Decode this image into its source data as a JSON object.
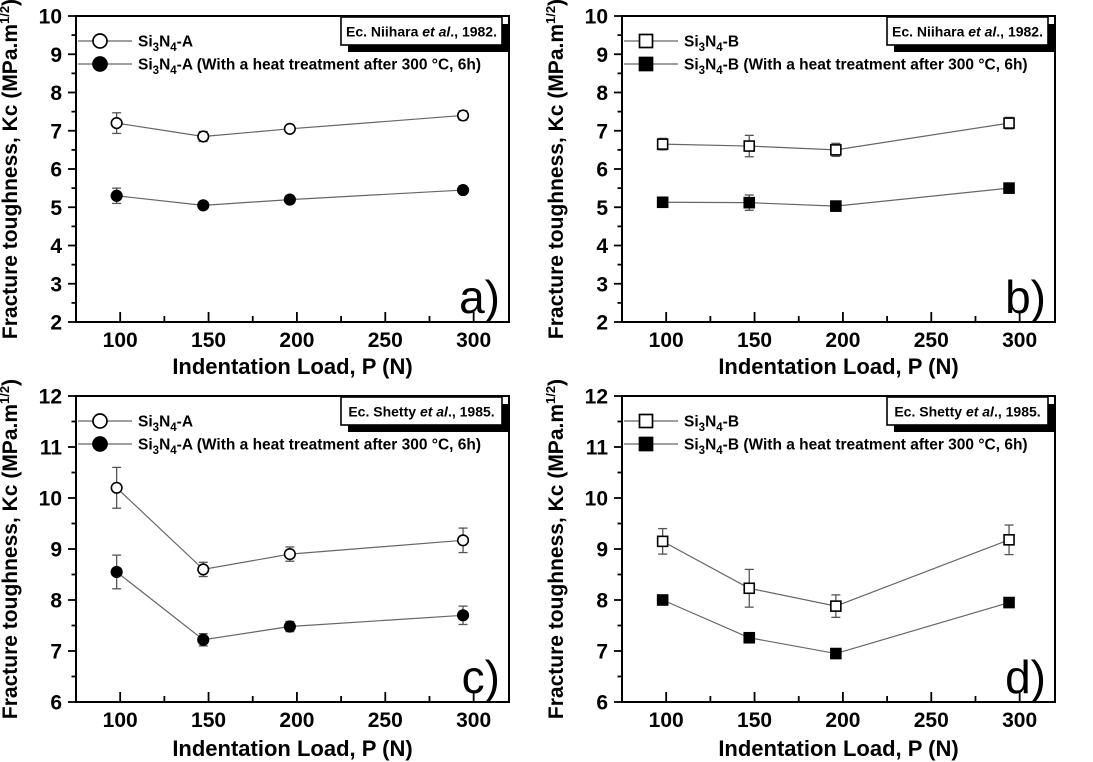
{
  "style": {
    "background": "#ffffff",
    "frame_color": "#000000",
    "line_color": "#666666",
    "error_bar_color": "#555555",
    "marker_color": "#000000",
    "open_marker_fill": "#ffffff",
    "reference_box_fill": "#ffffff",
    "reference_box_shadow": "#000000"
  },
  "chart_data": [
    {
      "id": "a",
      "panel_label": "a)",
      "type": "line",
      "reference": {
        "pre": "Ec. Niihara ",
        "italic": "et al",
        "post": "., 1982."
      },
      "xlabel": "Indentation Load, P (N)",
      "ylabel": {
        "pre": "Fracture toughness, Kc (MPa.m",
        "sup": "1/2",
        "post": ")"
      },
      "xlim": [
        75,
        320
      ],
      "ylim": [
        2,
        10
      ],
      "xticks": [
        100,
        150,
        200,
        250,
        300
      ],
      "xminorticks": [
        125,
        175,
        225,
        275
      ],
      "yticks": [
        2,
        3,
        4,
        5,
        6,
        7,
        8,
        9,
        10
      ],
      "legend_position": "top-left",
      "x": [
        98,
        147,
        196,
        294
      ],
      "series": [
        {
          "name": "Si3N4-A",
          "formula": "Si3N4",
          "suffix": "-A",
          "marker": "circle",
          "fill": "open",
          "values": [
            7.2,
            6.85,
            7.05,
            7.4
          ],
          "errors": [
            0.27,
            0.13,
            0,
            0.12
          ]
        },
        {
          "name": "Si3N4-A (With a heat treatment after 300 °C, 6h)",
          "formula": "Si3N4",
          "suffix": "-A (With a heat treatment after 300 °C, 6h)",
          "marker": "circle",
          "fill": "solid",
          "values": [
            5.3,
            5.05,
            5.2,
            5.45
          ],
          "errors": [
            0.2,
            0,
            0,
            0.07
          ]
        }
      ]
    },
    {
      "id": "b",
      "panel_label": "b)",
      "type": "line",
      "reference": {
        "pre": "Ec. Niihara ",
        "italic": "et al",
        "post": "., 1982."
      },
      "xlabel": "Indentation Load, P (N)",
      "ylabel": {
        "pre": "Fracture toughness, Kc (MPa.m",
        "sup": "1/2",
        "post": ")"
      },
      "xlim": [
        75,
        320
      ],
      "ylim": [
        2,
        10
      ],
      "xticks": [
        100,
        150,
        200,
        250,
        300
      ],
      "xminorticks": [
        125,
        175,
        225,
        275
      ],
      "yticks": [
        2,
        3,
        4,
        5,
        6,
        7,
        8,
        9,
        10
      ],
      "legend_position": "top-left",
      "x": [
        98,
        147,
        196,
        294
      ],
      "series": [
        {
          "name": "Si3N4-B",
          "formula": "Si3N4",
          "suffix": "-B",
          "marker": "square",
          "fill": "open",
          "values": [
            6.65,
            6.6,
            6.5,
            7.2
          ],
          "errors": [
            0.15,
            0.28,
            0.17,
            0.15
          ]
        },
        {
          "name": "Si3N4-B (With a heat treatment after 300 °C, 6h)",
          "formula": "Si3N4",
          "suffix": "-B (With a heat treatment after 300 °C, 6h)",
          "marker": "square",
          "fill": "solid",
          "values": [
            5.13,
            5.12,
            5.03,
            5.5
          ],
          "errors": [
            0.12,
            0.2,
            0.13,
            0.12
          ]
        }
      ]
    },
    {
      "id": "c",
      "panel_label": "c)",
      "type": "line",
      "reference": {
        "pre": "Ec. Shetty ",
        "italic": "et al",
        "post": "., 1985."
      },
      "xlabel": "Indentation Load, P (N)",
      "ylabel": {
        "pre": "Fracture toughness, Kc (MPa.m",
        "sup": "1/2",
        "post": ")"
      },
      "xlim": [
        75,
        320
      ],
      "ylim": [
        6,
        12
      ],
      "xticks": [
        100,
        150,
        200,
        250,
        300
      ],
      "xminorticks": [
        125,
        175,
        225,
        275
      ],
      "yticks": [
        6,
        7,
        8,
        9,
        10,
        11,
        12
      ],
      "legend_position": "top-left",
      "x": [
        98,
        147,
        196,
        294
      ],
      "series": [
        {
          "name": "Si3N4-A",
          "formula": "Si3N4",
          "suffix": "-A",
          "marker": "circle",
          "fill": "open",
          "values": [
            10.2,
            8.6,
            8.9,
            9.17
          ],
          "errors": [
            0.4,
            0.14,
            0.14,
            0.24
          ]
        },
        {
          "name": "Si3N4-A (With a heat treatment after 300 °C, 6h)",
          "formula": "Si3N4",
          "suffix": "-A (With a heat treatment after 300 °C, 6h)",
          "marker": "circle",
          "fill": "solid",
          "values": [
            8.55,
            7.22,
            7.48,
            7.7
          ],
          "errors": [
            0.33,
            0.12,
            0.1,
            0.18
          ]
        }
      ]
    },
    {
      "id": "d",
      "panel_label": "d)",
      "type": "line",
      "reference": {
        "pre": "Ec. Shetty ",
        "italic": "et al",
        "post": "., 1985."
      },
      "xlabel": "Indentation Load, P (N)",
      "ylabel": {
        "pre": "Fracture toughness, Kc (MPa.m",
        "sup": "1/2",
        "post": ")"
      },
      "xlim": [
        75,
        320
      ],
      "ylim": [
        6,
        12
      ],
      "xticks": [
        100,
        150,
        200,
        250,
        300
      ],
      "xminorticks": [
        125,
        175,
        225,
        275
      ],
      "yticks": [
        6,
        7,
        8,
        9,
        10,
        11,
        12
      ],
      "legend_position": "top-left",
      "x": [
        98,
        147,
        196,
        294
      ],
      "series": [
        {
          "name": "Si3N4-B",
          "formula": "Si3N4",
          "suffix": "-B",
          "marker": "square",
          "fill": "open",
          "values": [
            9.15,
            8.23,
            7.88,
            9.18
          ],
          "errors": [
            0.25,
            0.37,
            0.22,
            0.29
          ]
        },
        {
          "name": "Si3N4-B (With a heat treatment after 300 °C, 6h)",
          "formula": "Si3N4",
          "suffix": "-B (With a heat treatment after 300 °C, 6h)",
          "marker": "square",
          "fill": "solid",
          "values": [
            8.0,
            7.26,
            6.95,
            7.95
          ],
          "errors": [
            0,
            0,
            0,
            0
          ]
        }
      ]
    }
  ]
}
